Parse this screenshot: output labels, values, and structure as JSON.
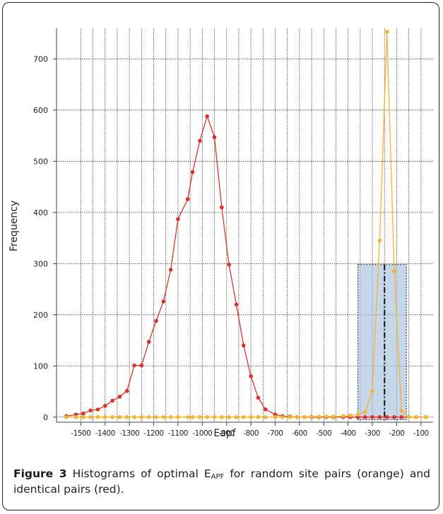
{
  "figure": {
    "caption_label": "Figure 3",
    "caption_text_1": " Histograms of optimal E",
    "caption_sub": "APF",
    "caption_text_2": " for random site pairs (orange) and identical pairs (red)."
  },
  "chart_data": {
    "type": "line",
    "xlabel": "Eapf",
    "ylabel": "Frequency",
    "xlim": [
      -1600,
      -50
    ],
    "ylim": [
      -10,
      760
    ],
    "x_ticks": [
      -1500,
      -1400,
      -1300,
      -1200,
      -1100,
      -1000,
      -900,
      -800,
      -700,
      -600,
      -500,
      -400,
      -300,
      -200,
      -100
    ],
    "x_tick_labels": [
      "-1500",
      "-1400",
      "-1300",
      "-1200",
      "-1100",
      "-1000",
      "-900",
      "-800",
      "-700",
      "-600",
      "-500",
      "-400",
      "-300",
      "-200",
      "-100"
    ],
    "y_ticks": [
      0,
      100,
      200,
      300,
      400,
      500,
      600,
      700
    ],
    "y_tick_labels": [
      "0",
      "100",
      "200",
      "300",
      "400",
      "500",
      "600",
      "700"
    ],
    "grid": true,
    "series": [
      {
        "color": "#d9332b",
        "x": [
          -1560,
          -1520,
          -1490,
          -1460,
          -1430,
          -1400,
          -1370,
          -1340,
          -1310,
          -1280,
          -1250,
          -1220,
          -1190,
          -1160,
          -1130,
          -1100,
          -1060,
          -1040,
          -1010,
          -980,
          -950,
          -920,
          -890,
          -860,
          -830,
          -800,
          -770,
          -740,
          -700,
          -670,
          -640,
          -610,
          -580,
          -550,
          -520,
          -490,
          -460,
          -420,
          -390,
          -360,
          -330,
          -300,
          -270,
          -240,
          -210,
          -180,
          -150,
          -120,
          -80
        ],
        "y": [
          2,
          5,
          7,
          13,
          15,
          22,
          32,
          40,
          51,
          101,
          101,
          147,
          188,
          226,
          288,
          387,
          426,
          479,
          540,
          588,
          547,
          410,
          298,
          220,
          140,
          80,
          38,
          15,
          5,
          2,
          1,
          0,
          0,
          0,
          0,
          0,
          0,
          0,
          0,
          0,
          0,
          0,
          0,
          0,
          0,
          0,
          0,
          0,
          0
        ]
      },
      {
        "color": "#f5b52e",
        "x": [
          -1560,
          -1520,
          -1490,
          -1460,
          -1430,
          -1400,
          -1370,
          -1340,
          -1310,
          -1280,
          -1250,
          -1220,
          -1190,
          -1160,
          -1130,
          -1100,
          -1060,
          -1040,
          -1010,
          -980,
          -950,
          -920,
          -890,
          -860,
          -830,
          -800,
          -770,
          -740,
          -700,
          -670,
          -640,
          -610,
          -580,
          -550,
          -520,
          -490,
          -460,
          -420,
          -390,
          -360,
          -330,
          -300,
          -270,
          -240,
          -210,
          -180,
          -150,
          -120,
          -80
        ],
        "y": [
          0,
          0,
          0,
          0,
          0,
          0,
          0,
          0,
          0,
          0,
          0,
          0,
          0,
          0,
          0,
          0,
          0,
          0,
          0,
          0,
          0,
          0,
          0,
          0,
          0,
          0,
          0,
          0,
          0,
          0,
          0,
          0,
          0,
          1,
          1,
          1,
          1,
          2,
          3,
          5,
          10,
          50,
          345,
          753,
          285,
          12,
          0,
          0,
          0
        ]
      }
    ],
    "highlight_box": {
      "x0": -360,
      "x1": -160,
      "y0": -5,
      "y1": 298,
      "color": "#a9c1de"
    },
    "vertical_marker": {
      "x": -250,
      "y0": -5,
      "y1": 298,
      "style": "dash-dot"
    }
  }
}
